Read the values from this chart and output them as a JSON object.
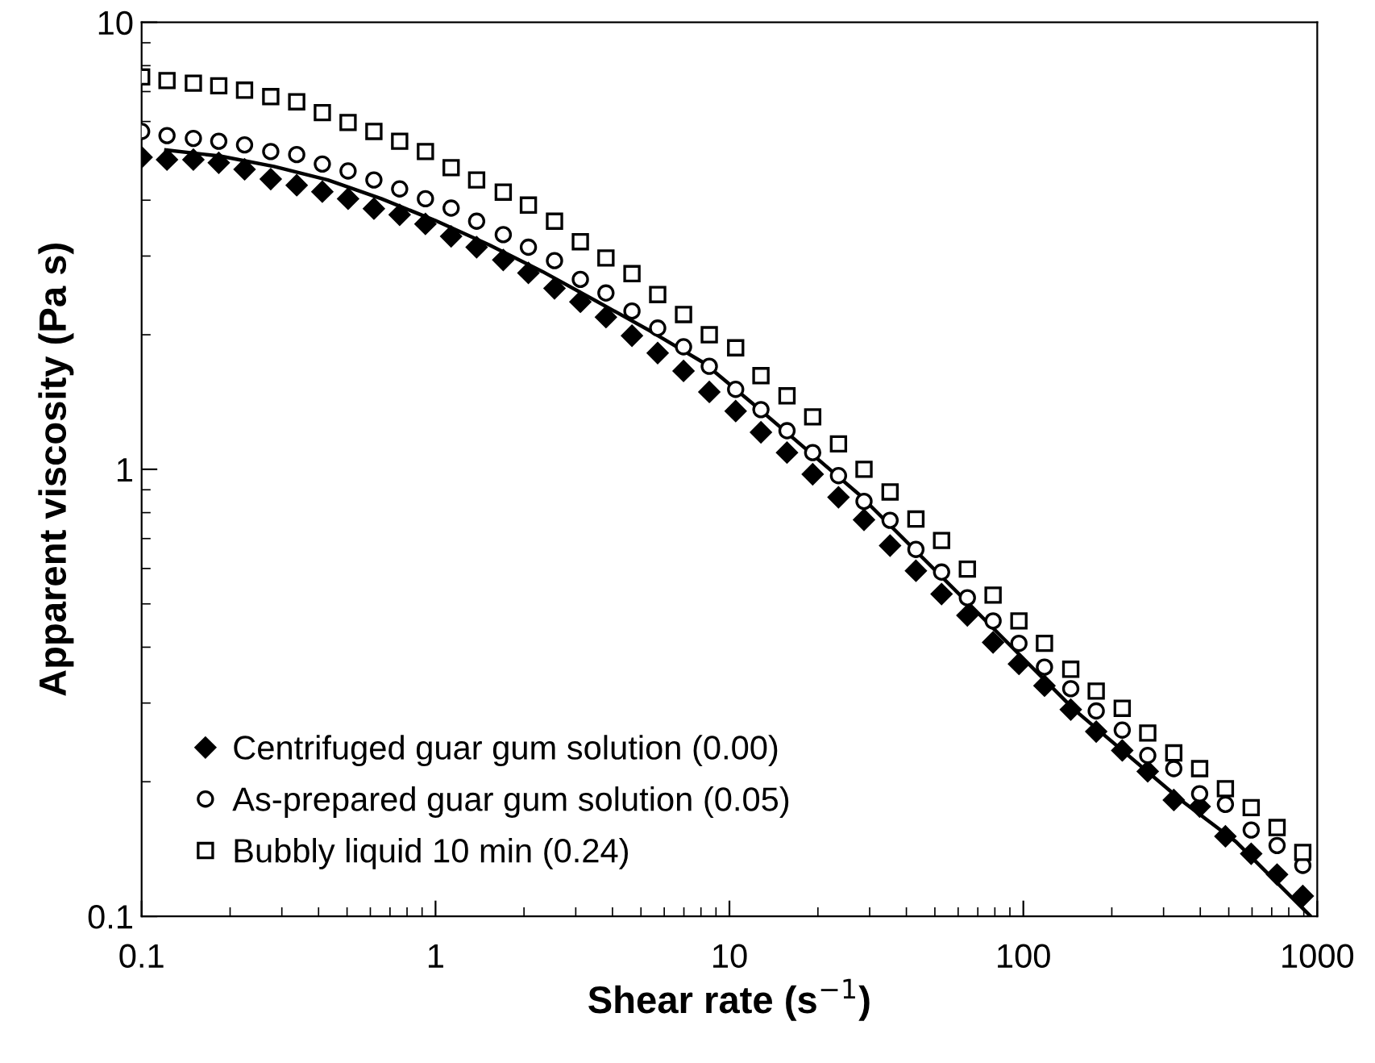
{
  "chart_data": {
    "type": "scatter",
    "xlabel": "Shear rate (s$^{−1}$)",
    "ylabel": "Apparent viscosity (Pa s)",
    "log": "xy",
    "xlim": [
      0.1,
      1000
    ],
    "ylim": [
      0.1,
      10
    ],
    "xticks": [
      0.1,
      1,
      10,
      100,
      1000
    ],
    "yticks": [
      0.1,
      1,
      10
    ],
    "grid": false,
    "legend": "bottom left",
    "x": [
      0.1,
      0.122,
      0.15,
      0.183,
      0.224,
      0.275,
      0.337,
      0.412,
      0.504,
      0.617,
      0.755,
      0.924,
      1.13,
      1.38,
      1.7,
      2.07,
      2.54,
      3.11,
      3.8,
      4.66,
      5.7,
      6.98,
      8.54,
      10.5,
      12.8,
      15.7,
      19.2,
      23.5,
      28.7,
      35.2,
      43.1,
      52.7,
      64.5,
      78.9,
      96.6,
      118,
      145,
      177,
      217,
      265,
      325,
      398,
      487,
      596,
      730,
      893
    ],
    "series": [
      {
        "name": "Centrifuged guar gum solution (0.00)",
        "color": "#000000",
        "marker": "diamond",
        "values": [
          4.99,
          4.93,
          4.93,
          4.85,
          4.69,
          4.46,
          4.32,
          4.18,
          4.03,
          3.83,
          3.71,
          3.54,
          3.32,
          3.14,
          2.94,
          2.75,
          2.54,
          2.37,
          2.19,
          1.99,
          1.82,
          1.66,
          1.49,
          1.35,
          1.21,
          1.09,
          0.975,
          0.866,
          0.771,
          0.675,
          0.593,
          0.526,
          0.471,
          0.41,
          0.367,
          0.328,
          0.29,
          0.259,
          0.235,
          0.211,
          0.182,
          0.176,
          0.151,
          0.138,
          0.124,
          0.111
        ]
      },
      {
        "name": "As-prepared guar gum solution (0.05)",
        "color": "#000000",
        "marker": "circle",
        "values": [
          5.7,
          5.58,
          5.5,
          5.42,
          5.32,
          5.14,
          5.06,
          4.82,
          4.65,
          4.44,
          4.24,
          4.03,
          3.84,
          3.59,
          3.35,
          3.14,
          2.93,
          2.66,
          2.48,
          2.26,
          2.07,
          1.88,
          1.7,
          1.51,
          1.36,
          1.22,
          1.09,
          0.968,
          0.848,
          0.769,
          0.662,
          0.589,
          0.516,
          0.458,
          0.408,
          0.361,
          0.323,
          0.288,
          0.261,
          0.229,
          0.214,
          0.188,
          0.178,
          0.156,
          0.144,
          0.13
        ]
      },
      {
        "name": "Bubbly liquid 10 min (0.24)",
        "color": "#000000",
        "marker": "square",
        "values": [
          7.55,
          7.41,
          7.31,
          7.21,
          7.05,
          6.82,
          6.64,
          6.28,
          5.97,
          5.7,
          5.42,
          5.14,
          4.73,
          4.44,
          4.17,
          3.9,
          3.59,
          3.23,
          2.97,
          2.74,
          2.46,
          2.22,
          2.0,
          1.87,
          1.62,
          1.46,
          1.31,
          1.14,
          1.0,
          0.89,
          0.774,
          0.693,
          0.598,
          0.523,
          0.458,
          0.408,
          0.357,
          0.319,
          0.292,
          0.257,
          0.232,
          0.214,
          0.193,
          0.175,
          0.158,
          0.139
        ]
      },
      {
        "type": "line",
        "color": "#000000",
        "marker": "none",
        "line_style": "solid",
        "x": [
          0.121,
          0.185,
          0.282,
          0.43,
          0.654,
          1.0,
          1.52,
          2.31,
          3.52,
          5.37,
          8.19,
          11.9,
          27.7,
          64.3,
          149,
          347,
          528,
          950
        ],
        "values": [
          5.18,
          5.02,
          4.76,
          4.44,
          4.03,
          3.6,
          3.18,
          2.77,
          2.38,
          2.04,
          1.73,
          1.41,
          0.877,
          0.505,
          0.29,
          0.181,
          0.147,
          0.1
        ]
      }
    ]
  }
}
